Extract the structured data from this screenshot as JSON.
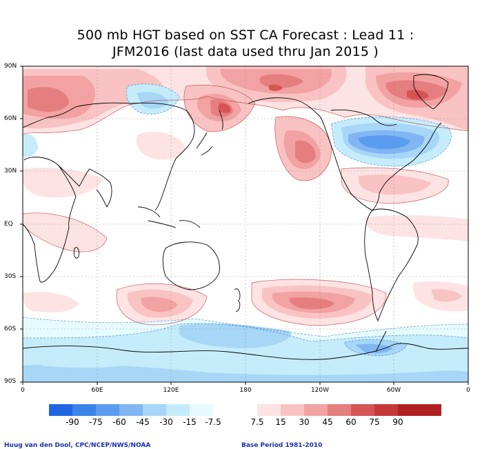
{
  "title": {
    "line1": "500 mb HGT based on SST CA Forecast : Lead 11 :",
    "line2": "JFM2016 (last data used thru Jan 2015 )"
  },
  "map": {
    "projection": "equirectangular, 0 to 360 longitude, 90N to 90S",
    "lat_labels": [
      "90N",
      "60N",
      "30N",
      "EQ",
      "30S",
      "60S",
      "90S"
    ],
    "lon_labels": [
      "0",
      "60E",
      "120E",
      "180",
      "120W",
      "60W",
      "0"
    ],
    "anomaly_centers": [
      {
        "region": "North Pacific / Kamchatka",
        "sign": "positive",
        "peak": 75
      },
      {
        "region": "Arctic north of Alaska",
        "sign": "positive",
        "peak": 75
      },
      {
        "region": "Northern Europe / Scandinavia",
        "sign": "positive",
        "peak": 60
      },
      {
        "region": "Greenland / Arctic Atlantic",
        "sign": "positive",
        "peak": 75
      },
      {
        "region": "Western North America",
        "sign": "positive",
        "peak": 60
      },
      {
        "region": "Eastern Canada / Hudson Bay",
        "sign": "negative",
        "peak": -60
      },
      {
        "region": "Western Siberia",
        "sign": "negative",
        "peak": -30
      },
      {
        "region": "South Pacific near 45S",
        "sign": "positive",
        "peak": 60
      },
      {
        "region": "South of Australia",
        "sign": "positive",
        "peak": 45
      },
      {
        "region": "Southern Ocean band near 60S",
        "sign": "negative",
        "peak": -30
      },
      {
        "region": "Antarctic Peninsula",
        "sign": "negative",
        "peak": -45
      }
    ]
  },
  "colorbar": {
    "labels": [
      "-90",
      "-75",
      "-60",
      "-45",
      "-30",
      "-15",
      "-7.5",
      "7.5",
      "15",
      "30",
      "45",
      "60",
      "75",
      "90"
    ],
    "colors": [
      "#1f66e5",
      "#3a84ea",
      "#5a9def",
      "#81b6f3",
      "#a7d6f7",
      "#c5ecfa",
      "#e6fbfd",
      "#ffffff",
      "#fde3e3",
      "#f9c3c3",
      "#f2a2a2",
      "#e57e7e",
      "#d65454",
      "#c43838",
      "#b02020"
    ]
  },
  "footer": {
    "credit": "Huug van den Dool, CPC/NCEP/NWS/NOAA",
    "base_period": "Base Period 1981-2010"
  }
}
